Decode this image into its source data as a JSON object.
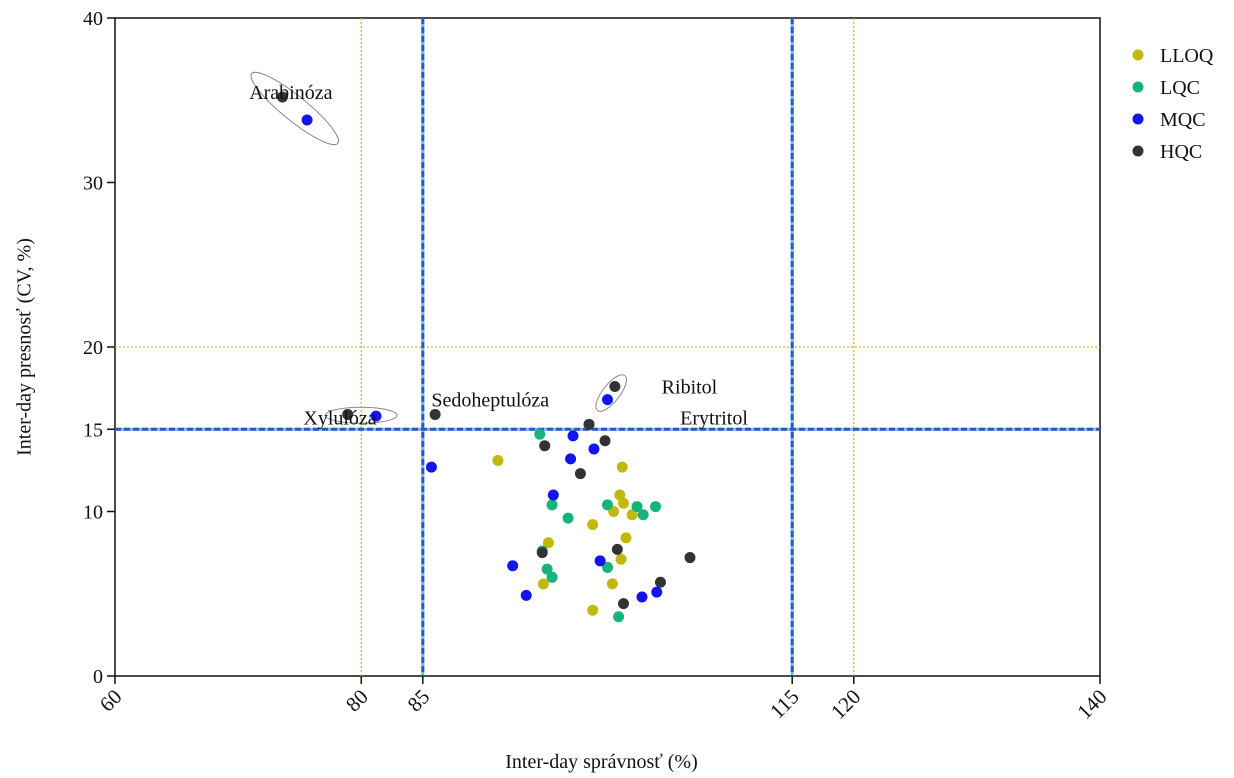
{
  "chart_data": {
    "type": "scatter",
    "xlabel": "Inter-day správnosť (%)",
    "ylabel": "Inter-day presnosť (CV, %)",
    "xlim": [
      60,
      140
    ],
    "ylim": [
      0,
      40
    ],
    "xticks": [
      60,
      80,
      85,
      115,
      120,
      140
    ],
    "yticks": [
      0,
      10,
      15,
      20,
      30,
      40
    ],
    "legend_position": "top-right",
    "reference_lines": {
      "yellow_dotted_x": [
        80,
        120
      ],
      "yellow_dotted_y": [
        20
      ],
      "blue_dashed_x": [
        85,
        115
      ],
      "blue_dashed_y": [
        15
      ]
    },
    "colors": {
      "LLOQ": "#c2b80c",
      "LQC": "#14b47a",
      "MQC": "#1414f0",
      "HQC": "#333333",
      "blue_line": "#2b57c8",
      "yellow_line": "#c8c020"
    },
    "series": [
      {
        "name": "LLOQ",
        "points": [
          [
            91.1,
            13.1
          ],
          [
            95.2,
            8.1
          ],
          [
            94.8,
            5.6
          ],
          [
            98.8,
            9.2
          ],
          [
            98.8,
            4.0
          ],
          [
            101.2,
            12.7
          ],
          [
            101.0,
            11.0
          ],
          [
            101.3,
            10.5
          ],
          [
            100.5,
            10.0
          ],
          [
            102.0,
            9.8
          ],
          [
            101.5,
            8.4
          ],
          [
            101.1,
            7.1
          ],
          [
            100.4,
            5.6
          ]
        ]
      },
      {
        "name": "LQC",
        "points": [
          [
            94.5,
            14.7
          ],
          [
            95.5,
            10.4
          ],
          [
            96.8,
            9.6
          ],
          [
            94.7,
            7.6
          ],
          [
            95.1,
            6.5
          ],
          [
            95.5,
            6.0
          ],
          [
            100.0,
            6.6
          ],
          [
            100.0,
            10.4
          ],
          [
            102.4,
            10.3
          ],
          [
            102.9,
            9.8
          ],
          [
            103.9,
            10.3
          ],
          [
            100.9,
            3.6
          ]
        ]
      },
      {
        "name": "MQC",
        "points": [
          [
            75.6,
            33.8
          ],
          [
            81.2,
            15.8
          ],
          [
            85.7,
            12.7
          ],
          [
            100.0,
            16.8
          ],
          [
            97.2,
            14.6
          ],
          [
            98.9,
            13.8
          ],
          [
            97.0,
            13.2
          ],
          [
            95.6,
            11.0
          ],
          [
            92.3,
            6.7
          ],
          [
            93.4,
            4.9
          ],
          [
            99.4,
            7.0
          ],
          [
            102.8,
            4.8
          ],
          [
            104.0,
            5.1
          ]
        ]
      },
      {
        "name": "HQC",
        "points": [
          [
            73.6,
            35.2
          ],
          [
            78.9,
            15.9
          ],
          [
            86.0,
            15.9
          ],
          [
            100.6,
            17.6
          ],
          [
            98.5,
            15.3
          ],
          [
            99.8,
            14.3
          ],
          [
            94.9,
            14.0
          ],
          [
            97.8,
            12.3
          ],
          [
            94.7,
            7.5
          ],
          [
            100.8,
            7.7
          ],
          [
            101.3,
            4.4
          ],
          [
            104.3,
            5.7
          ],
          [
            106.7,
            7.2
          ]
        ]
      }
    ],
    "annotations": [
      {
        "text": "Arabinóza",
        "x": 70.9,
        "y": 35.5
      },
      {
        "text": "Xylulóza",
        "x": 75.3,
        "y": 15.7
      },
      {
        "text": "Sedoheptulóza",
        "x": 85.7,
        "y": 16.8
      },
      {
        "text": "Ribitol",
        "x": 104.4,
        "y": 17.6
      },
      {
        "text": "Erytritol",
        "x": 105.9,
        "y": 15.7
      }
    ],
    "ellipses": [
      {
        "label": "Arabinóza",
        "cx": 74.6,
        "cy": 34.5,
        "rx": 4.5,
        "ry": 1.0,
        "angle": 39
      },
      {
        "label": "Xylulóza",
        "cx": 80.0,
        "cy": 15.85,
        "rx": 2.9,
        "ry": 0.65,
        "angle": 0
      },
      {
        "label": "Ribitol",
        "cx": 100.3,
        "cy": 17.2,
        "rx": 1.8,
        "ry": 0.7,
        "angle": -52
      }
    ]
  }
}
